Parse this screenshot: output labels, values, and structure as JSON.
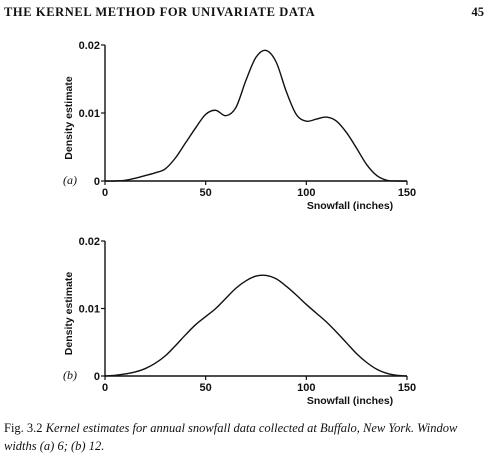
{
  "header": {
    "running_title": "THE KERNEL METHOD FOR UNIVARIATE DATA",
    "page_number": "45"
  },
  "caption": {
    "label": "Fig. 3.2",
    "text": "Kernel estimates for annual snowfall data collected at Buffalo, New York. Window widths (a) 6; (b) 12."
  },
  "chart_data": [
    {
      "type": "line",
      "panel_label": "(a)",
      "xlabel": "Snowfall (inches)",
      "ylabel": "Density estimate",
      "xlim": [
        0,
        150
      ],
      "ylim": [
        0,
        0.02
      ],
      "xticks": [
        0,
        50,
        100,
        150
      ],
      "xtick_labels": [
        "0",
        "50",
        "100",
        "150"
      ],
      "yticks": [
        0,
        0.01,
        0.02
      ],
      "ytick_labels": [
        "0",
        "0.01",
        "0.02"
      ],
      "grid": false,
      "series": [
        {
          "x": [
            0,
            5,
            10,
            15,
            20,
            25,
            30,
            35,
            40,
            45,
            50,
            55,
            60,
            65,
            70,
            75,
            80,
            85,
            90,
            95,
            100,
            105,
            110,
            115,
            120,
            125,
            130,
            135,
            140,
            145,
            150
          ],
          "y": [
            0,
            0,
            0.0001,
            0.0004,
            0.0008,
            0.0012,
            0.0018,
            0.0034,
            0.0056,
            0.0078,
            0.0098,
            0.0104,
            0.0096,
            0.0108,
            0.0148,
            0.0182,
            0.0192,
            0.0175,
            0.0132,
            0.0098,
            0.0088,
            0.0091,
            0.0094,
            0.0088,
            0.0071,
            0.0048,
            0.0024,
            0.0008,
            0.0001,
            0,
            0
          ]
        }
      ]
    },
    {
      "type": "line",
      "panel_label": "(b)",
      "xlabel": "Snowfall (inches)",
      "ylabel": "Density estimate",
      "xlim": [
        0,
        150
      ],
      "ylim": [
        0,
        0.02
      ],
      "xticks": [
        0,
        50,
        100,
        150
      ],
      "xtick_labels": [
        "0",
        "50",
        "100",
        "150"
      ],
      "yticks": [
        0,
        0.01,
        0.02
      ],
      "ytick_labels": [
        "0",
        "0.01",
        "0.02"
      ],
      "grid": false,
      "series": [
        {
          "x": [
            0,
            5,
            10,
            15,
            20,
            25,
            30,
            35,
            40,
            45,
            50,
            55,
            60,
            65,
            70,
            75,
            80,
            85,
            90,
            95,
            100,
            105,
            110,
            115,
            120,
            125,
            130,
            135,
            140,
            145,
            150
          ],
          "y": [
            0,
            0.0001,
            0.0003,
            0.0006,
            0.0011,
            0.0019,
            0.003,
            0.0045,
            0.0061,
            0.0076,
            0.0088,
            0.01,
            0.0115,
            0.013,
            0.0141,
            0.0148,
            0.0149,
            0.0144,
            0.0133,
            0.012,
            0.0106,
            0.0093,
            0.008,
            0.0065,
            0.0049,
            0.0033,
            0.002,
            0.001,
            0.0004,
            0.0001,
            0
          ]
        }
      ]
    }
  ]
}
